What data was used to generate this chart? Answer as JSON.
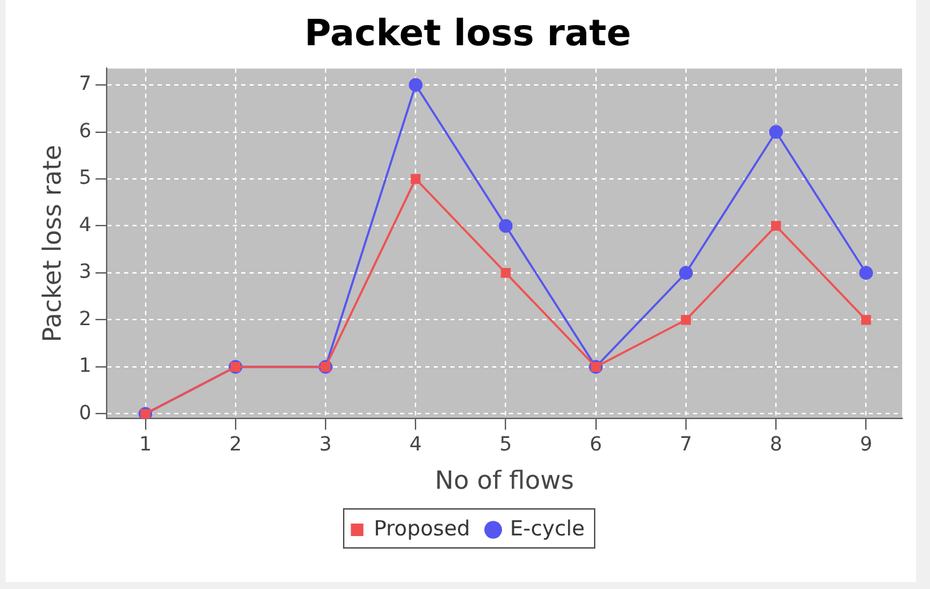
{
  "chart_data": {
    "type": "line",
    "title": "Packet loss rate",
    "xlabel": "No of flows",
    "ylabel": "Packet loss rate",
    "x": [
      1,
      2,
      3,
      4,
      5,
      6,
      7,
      8,
      9
    ],
    "series": [
      {
        "name": "Proposed",
        "color": "#f05050",
        "marker": "square",
        "values": [
          0,
          1,
          1,
          5,
          3,
          1,
          2,
          4,
          2
        ]
      },
      {
        "name": "E-cycle",
        "color": "#5555f0",
        "marker": "circle",
        "values": [
          0,
          1,
          1,
          7,
          4,
          1,
          3,
          6,
          3
        ]
      }
    ],
    "xlim": [
      0.57,
      9.4
    ],
    "xticks": [
      1,
      2,
      3,
      4,
      5,
      6,
      7,
      8,
      9
    ],
    "ylim": [
      -0.1,
      7.35
    ],
    "yticks": [
      0,
      1,
      2,
      3,
      4,
      5,
      6,
      7
    ],
    "grid": true,
    "legend": "bottom",
    "line_style": "solid"
  }
}
